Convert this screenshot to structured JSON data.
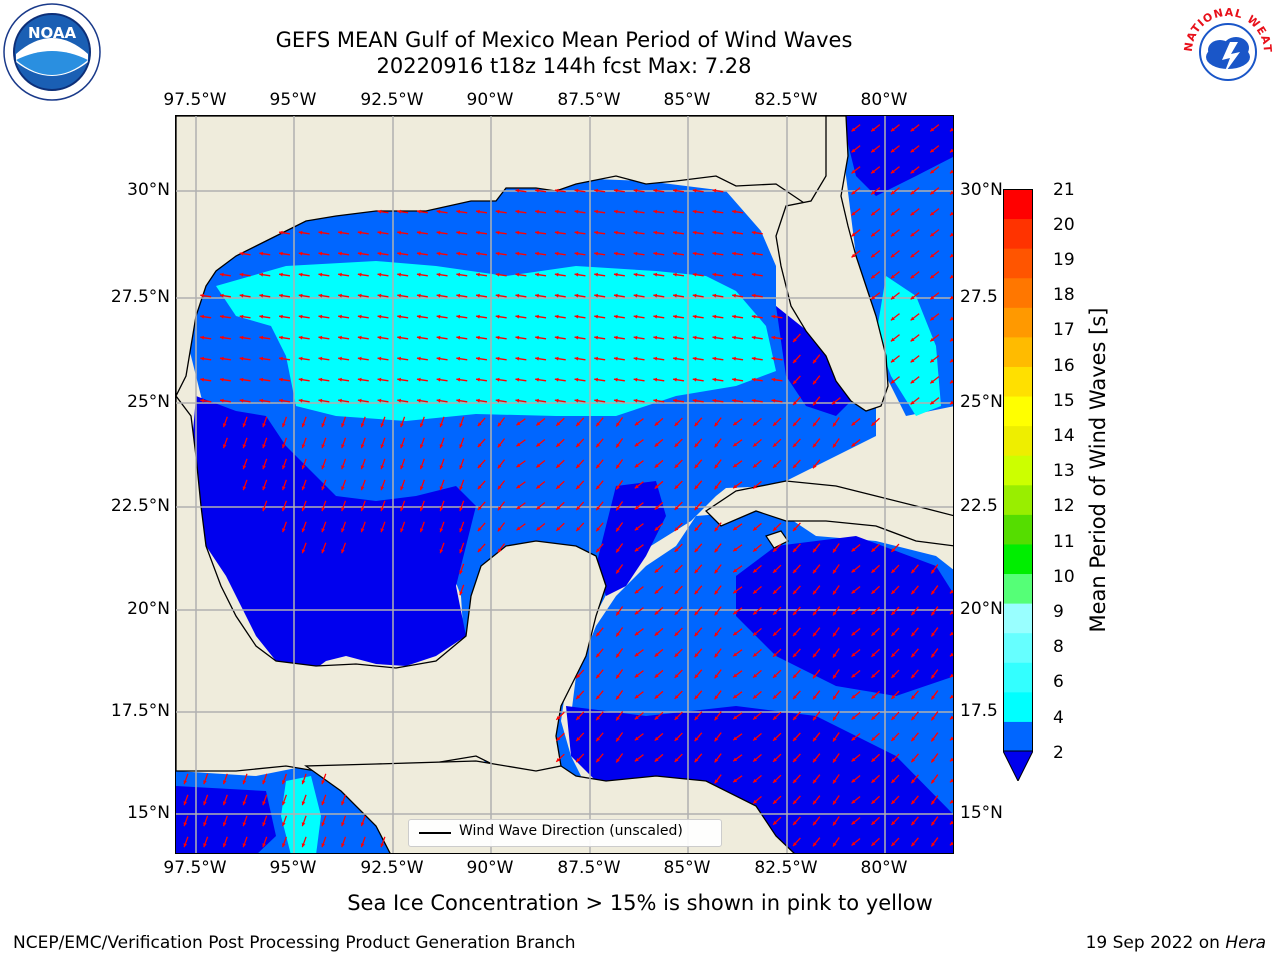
{
  "title": {
    "line1": "GEFS MEAN Gulf of Mexico Mean Period of Wind Waves",
    "line2": "20220916 t18z 144h fcst   Max: 7.28"
  },
  "map": {
    "lon_ticks": [
      "97.5°W",
      "95°W",
      "92.5°W",
      "90°W",
      "87.5°W",
      "85°W",
      "82.5°W",
      "80°W"
    ],
    "lat_ticks_left": [
      "30°N",
      "27.5°N",
      "25°N",
      "22.5°N",
      "20°N",
      "17.5°N",
      "15°N"
    ],
    "lat_ticks_right": [
      "30°N",
      "27.5",
      "25°N",
      "22.5",
      "20°N",
      "17.5",
      "15°N"
    ],
    "extent": {
      "lon_min": -98,
      "lon_max": -78.2,
      "lat_min": 14.1,
      "lat_max": 31.8
    },
    "colors": {
      "land": "#efecdc",
      "wave_2_4": "#0066ff",
      "wave_low": "#0000ee",
      "wave_4_6": "#00ffff",
      "arrow": "#ff0000",
      "grid": "#b0b0b0"
    }
  },
  "legend": {
    "label": "Wind Wave Direction (unscaled)"
  },
  "colorbar": {
    "label": "Mean Period of Wind Waves [s]",
    "ticks": [
      "21",
      "20",
      "19",
      "18",
      "17",
      "16",
      "15",
      "14",
      "13",
      "12",
      "11",
      "10",
      "9",
      "8",
      "6",
      "4",
      "2"
    ],
    "colors": [
      "#0066ff",
      "#00ffff",
      "#33ffff",
      "#66ffff",
      "#99ffff",
      "#55ff77",
      "#00ee00",
      "#55dd00",
      "#99ee00",
      "#ccff00",
      "#eeee00",
      "#ffff00",
      "#ffe000",
      "#ffbb00",
      "#ff9900",
      "#ff7700",
      "#ff5500",
      "#ff3300",
      "#ff0000"
    ],
    "extend_color": "#0000ee"
  },
  "caption": "Sea Ice Concentration > 15% is shown in pink to yellow",
  "footer": {
    "left": "NCEP/EMC/Verification Post Processing Product Generation Branch",
    "date": "19 Sep 2022 on ",
    "host": "Hera"
  },
  "logos": {
    "noaa": "NOAA",
    "nws": "NATIONAL WEATHER SERVICE"
  }
}
